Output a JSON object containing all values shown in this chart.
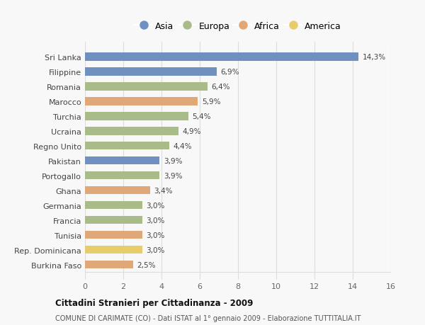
{
  "countries": [
    "Sri Lanka",
    "Filippine",
    "Romania",
    "Marocco",
    "Turchia",
    "Ucraina",
    "Regno Unito",
    "Pakistan",
    "Portogallo",
    "Ghana",
    "Germania",
    "Francia",
    "Tunisia",
    "Rep. Dominicana",
    "Burkina Faso"
  ],
  "values": [
    14.3,
    6.9,
    6.4,
    5.9,
    5.4,
    4.9,
    4.4,
    3.9,
    3.9,
    3.4,
    3.0,
    3.0,
    3.0,
    3.0,
    2.5
  ],
  "labels": [
    "14,3%",
    "6,9%",
    "6,4%",
    "5,9%",
    "5,4%",
    "4,9%",
    "4,4%",
    "3,9%",
    "3,9%",
    "3,4%",
    "3,0%",
    "3,0%",
    "3,0%",
    "3,0%",
    "2,5%"
  ],
  "continents": [
    "Asia",
    "Asia",
    "Europa",
    "Africa",
    "Europa",
    "Europa",
    "Europa",
    "Asia",
    "Europa",
    "Africa",
    "Europa",
    "Europa",
    "Africa",
    "America",
    "Africa"
  ],
  "continent_colors": {
    "Asia": "#7090c0",
    "Europa": "#aabb8a",
    "Africa": "#e0a878",
    "America": "#e8cc6a"
  },
  "legend_order": [
    "Asia",
    "Europa",
    "Africa",
    "America"
  ],
  "title1": "Cittadini Stranieri per Cittadinanza - 2009",
  "title2": "COMUNE DI CARIMATE (CO) - Dati ISTAT al 1° gennaio 2009 - Elaborazione TUTTITALIA.IT",
  "xlim": [
    0,
    16
  ],
  "xticks": [
    0,
    2,
    4,
    6,
    8,
    10,
    12,
    14,
    16
  ],
  "background_color": "#f8f8f8",
  "grid_color": "#dddddd"
}
